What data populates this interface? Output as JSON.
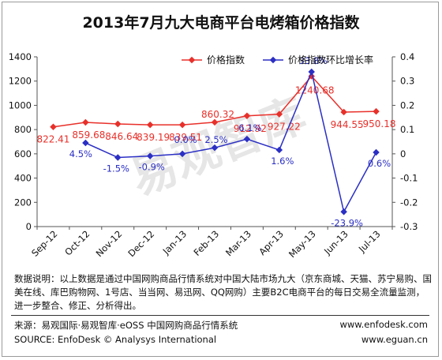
{
  "title": "2013年7月九大电商平台电烤箱价格指数",
  "chart_data": {
    "type": "line",
    "categories": [
      "Sep-12",
      "Oct-12",
      "Nov-12",
      "Dec-12",
      "Jan-13",
      "Feb-13",
      "Mar-13",
      "Apr-13",
      "May-13",
      "Jun-13",
      "Jul-13"
    ],
    "series": [
      {
        "name": "价格指数",
        "axis": "left",
        "color": "#e8302a",
        "values": [
          822.41,
          859.68,
          846.64,
          839.19,
          839.51,
          860.32,
          912.92,
          927.22,
          1240.68,
          944.55,
          950.18
        ],
        "labels": [
          "822.41",
          "859.68",
          "846.64",
          "839.19",
          "839.51",
          "860.32",
          "912.92",
          "927.22",
          "1240.68",
          "944.55",
          "950.18"
        ]
      },
      {
        "name": "价格指数环比增长率",
        "axis": "right",
        "color": "#2b2fc4",
        "values": [
          null,
          0.045,
          -0.015,
          -0.009,
          0.0,
          0.025,
          0.061,
          0.016,
          0.338,
          -0.239,
          0.006
        ],
        "labels": [
          "",
          "4.5%",
          "-1.5%",
          "-0.9%",
          "0.0%",
          "2.5%",
          "6.1%",
          "1.6%",
          "33.8%",
          "-23.9%",
          "0.6%"
        ]
      }
    ],
    "y_left": {
      "min": 0,
      "max": 1400,
      "ticks": [
        "0",
        "200",
        "400",
        "600",
        "800",
        "1000",
        "1200",
        "1400"
      ]
    },
    "y_right": {
      "min": -0.3,
      "max": 0.4,
      "ticks": [
        "-0.3",
        "-0.2",
        "-0.1",
        "0",
        "0.1",
        "0.2",
        "0.3",
        "0.4"
      ]
    },
    "legend_position": "top-right",
    "watermark": "易观智库"
  },
  "footnote": "数据说明：以上数据是通过中国网购商品行情系统对中国大陆市场九大（京东商城、天猫、苏宁易购、国美在线、库巴购物网、1号店、当当网、易迅网、QQ网购）主要B2C电商平台的每日交易全流量监测，进一步整合、修正、分析得出。",
  "source_cn": "来源：易观国际·易观智库·eOSS 中国网购商品行情系统",
  "source_en": "SOURCE: EnfoDesk © Analysys International",
  "url1": "www.enfodesk.com",
  "url2": "www.eguan.cn"
}
